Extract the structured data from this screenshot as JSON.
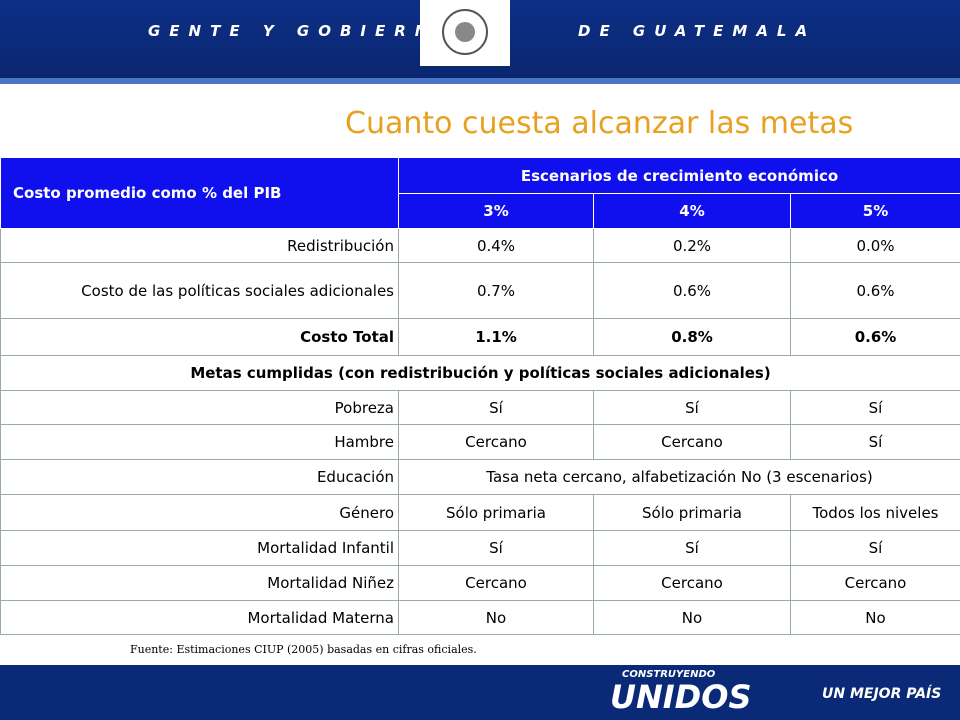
{
  "header": {
    "left": "GENTE Y GOBIERNO",
    "right": "DE GUATEMALA"
  },
  "title": "Cuanto cuesta alcanzar las metas",
  "table": {
    "corner": "Costo promedio como % del PIB",
    "group": "Escenarios de crecimiento económico",
    "columns": [
      "3%",
      "4%",
      "5%"
    ],
    "rows": [
      [
        "Redistribución",
        "0.4%",
        "0.2%",
        "0.0%"
      ],
      [
        "Costo de las políticas sociales adicionales",
        "0.7%",
        "0.6%",
        "0.6%"
      ],
      [
        "Costo Total",
        "1.1%",
        "0.8%",
        "0.6%"
      ],
      [
        "Metas cumplidas (con redistribución y políticas sociales adicionales)"
      ],
      [
        "Pobreza",
        "Sí",
        "Sí",
        "Sí"
      ],
      [
        "Hambre",
        "Cercano",
        "Cercano",
        "Sí"
      ],
      [
        "Educación",
        "Tasa neta cercano, alfabetización No (3 escenarios)"
      ],
      [
        "Género",
        "Sólo primaria",
        "Sólo primaria",
        "Todos los niveles"
      ],
      [
        "Mortalidad Infantil",
        "Sí",
        "Sí",
        "Sí"
      ],
      [
        "Mortalidad Niñez",
        "Cercano",
        "Cercano",
        "Cercano"
      ],
      [
        "Mortalidad Materna",
        "No",
        "No",
        "No"
      ]
    ]
  },
  "source": "Fuente: Estimaciones CIUP (2005) basadas en cifras oficiales.",
  "footer": {
    "top": "CONSTRUYENDO",
    "brand": "UNIDOS",
    "slogan": "UN MEJOR PAÍS"
  }
}
